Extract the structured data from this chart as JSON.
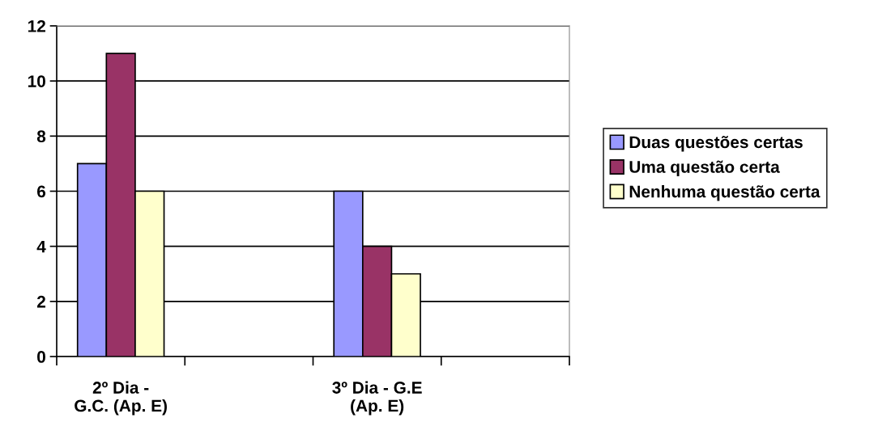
{
  "chart_data": {
    "type": "bar",
    "categories": [
      "2º Dia -\nG.C. (Ap. E)",
      null,
      "3º Dia - G.E\n(Ap. E)",
      null
    ],
    "series": [
      {
        "name": "Duas questões certas",
        "color": "#9999ff",
        "values": [
          7,
          null,
          6,
          null
        ]
      },
      {
        "name": "Uma questão certa",
        "color": "#993366",
        "values": [
          11,
          null,
          4,
          null
        ]
      },
      {
        "name": "Nenhuma questão certa",
        "color": "#ffffcc",
        "values": [
          6,
          null,
          3,
          null
        ]
      }
    ],
    "ylim": [
      0,
      12
    ],
    "yticks": [
      0,
      2,
      4,
      6,
      8,
      10,
      12
    ],
    "grid": "y",
    "legend": "right"
  }
}
